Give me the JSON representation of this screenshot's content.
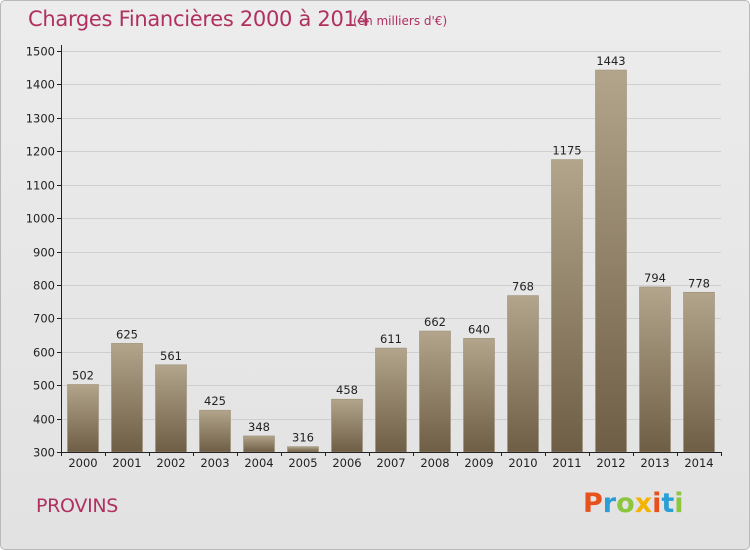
{
  "header": {
    "title": "Charges Financières 2000 à 2014",
    "subtitle": "(en milliers d'€)"
  },
  "footer": {
    "city": "PROVINS",
    "logo_text": "Proxiti",
    "logo_colors": [
      "#e8501e",
      "#2a9fd6",
      "#8cc63e",
      "#f4b300",
      "#e8501e",
      "#2a9fd6",
      "#8cc63e"
    ]
  },
  "colors": {
    "accent": "#b03060",
    "bar_top": "#b2a58c",
    "bar_bottom": "#6e5e45",
    "grid": "#cfcfcf",
    "axis": "#222222"
  },
  "chart_data": {
    "type": "bar",
    "categories": [
      "2000",
      "2001",
      "2002",
      "2003",
      "2004",
      "2005",
      "2006",
      "2007",
      "2008",
      "2009",
      "2010",
      "2011",
      "2012",
      "2013",
      "2014"
    ],
    "values": [
      502,
      625,
      561,
      425,
      348,
      316,
      458,
      611,
      662,
      640,
      768,
      1175,
      1443,
      794,
      778
    ],
    "title": "Charges Financières 2000 à 2014",
    "subtitle": "(en milliers d'€)",
    "ylim": [
      300,
      1500
    ],
    "yticks": [
      300,
      400,
      500,
      600,
      700,
      800,
      900,
      1000,
      1100,
      1200,
      1300,
      1400,
      1500
    ],
    "grid": true,
    "data_labels": true
  }
}
